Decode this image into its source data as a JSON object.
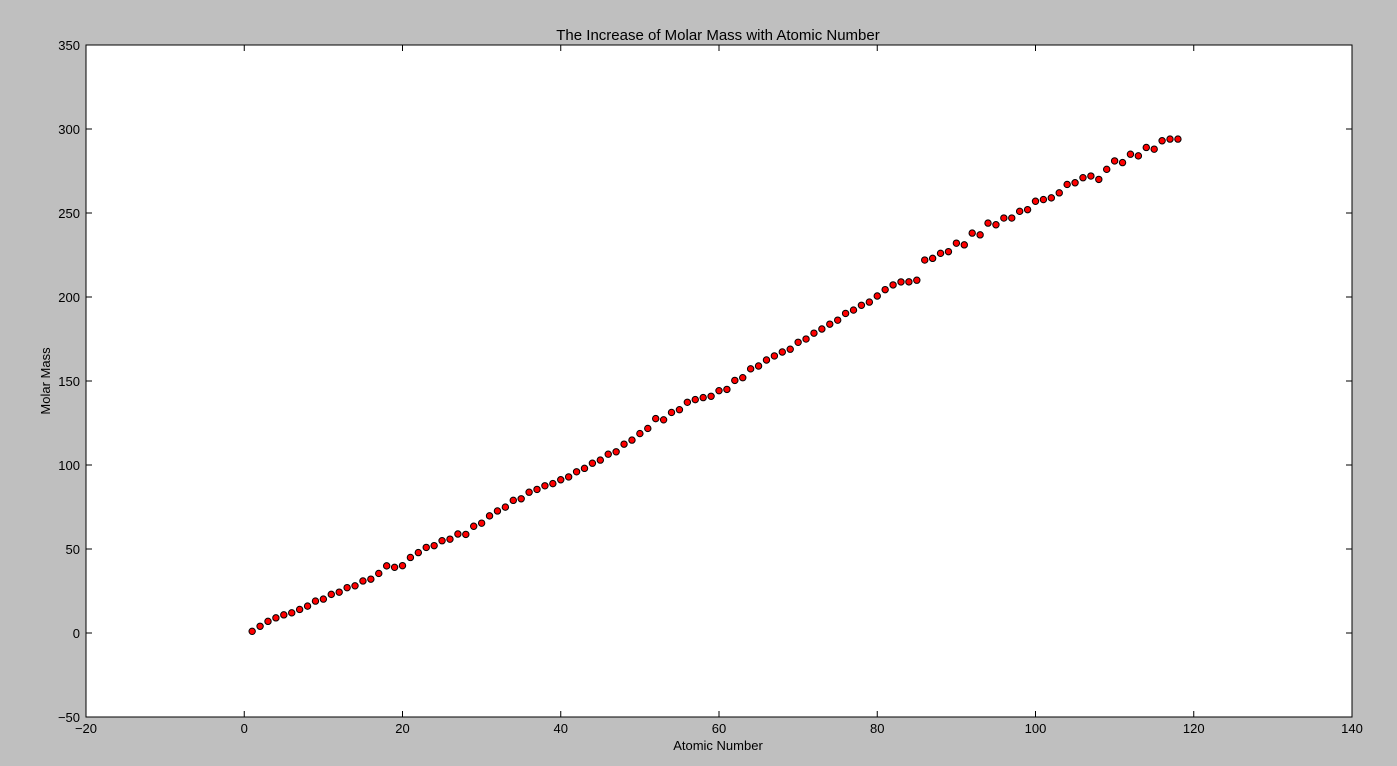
{
  "chart_data": {
    "type": "scatter",
    "title": "The Increase of Molar Mass with Atomic Number",
    "xlabel": "Atomic Number",
    "ylabel": "Molar Mass",
    "xlim": [
      -20,
      140
    ],
    "ylim": [
      -50,
      350
    ],
    "xticks": [
      -20,
      0,
      20,
      40,
      60,
      80,
      100,
      120,
      140
    ],
    "yticks": [
      -50,
      0,
      50,
      100,
      150,
      200,
      250,
      300,
      350
    ],
    "xtick_labels": [
      "−20",
      "0",
      "20",
      "40",
      "60",
      "80",
      "100",
      "120",
      "140"
    ],
    "ytick_labels": [
      "−50",
      "0",
      "50",
      "100",
      "150",
      "200",
      "250",
      "300",
      "350"
    ],
    "grid": false,
    "legend": "none",
    "marker_color": "#ff0000",
    "marker_edge_color": "#000000",
    "x": [
      1,
      2,
      3,
      4,
      5,
      6,
      7,
      8,
      9,
      10,
      11,
      12,
      13,
      14,
      15,
      16,
      17,
      18,
      19,
      20,
      21,
      22,
      23,
      24,
      25,
      26,
      27,
      28,
      29,
      30,
      31,
      32,
      33,
      34,
      35,
      36,
      37,
      38,
      39,
      40,
      41,
      42,
      43,
      44,
      45,
      46,
      47,
      48,
      49,
      50,
      51,
      52,
      53,
      54,
      55,
      56,
      57,
      58,
      59,
      60,
      61,
      62,
      63,
      64,
      65,
      66,
      67,
      68,
      69,
      70,
      71,
      72,
      73,
      74,
      75,
      76,
      77,
      78,
      79,
      80,
      81,
      82,
      83,
      84,
      85,
      86,
      87,
      88,
      89,
      90,
      91,
      92,
      93,
      94,
      95,
      96,
      97,
      98,
      99,
      100,
      101,
      102,
      103,
      104,
      105,
      106,
      107,
      108,
      109,
      110,
      111,
      112,
      113,
      114,
      115,
      116,
      117,
      118
    ],
    "y": [
      1.008,
      4.003,
      6.94,
      9.012,
      10.81,
      12.01,
      14.01,
      16.0,
      19.0,
      20.18,
      22.99,
      24.31,
      26.98,
      28.09,
      30.97,
      32.06,
      35.45,
      39.95,
      39.1,
      40.08,
      44.96,
      47.87,
      50.94,
      52.0,
      54.94,
      55.85,
      58.93,
      58.69,
      63.55,
      65.38,
      69.72,
      72.63,
      74.92,
      78.97,
      79.9,
      83.8,
      85.47,
      87.62,
      88.91,
      91.22,
      92.91,
      95.95,
      98.0,
      101.07,
      102.91,
      106.42,
      107.87,
      112.41,
      114.82,
      118.71,
      121.76,
      127.6,
      126.9,
      131.29,
      132.91,
      137.33,
      138.91,
      140.12,
      140.91,
      144.24,
      145.0,
      150.36,
      151.96,
      157.25,
      158.93,
      162.5,
      164.93,
      167.26,
      168.93,
      173.05,
      174.97,
      178.49,
      180.95,
      183.84,
      186.21,
      190.23,
      192.22,
      195.08,
      196.97,
      200.59,
      204.38,
      207.2,
      208.98,
      209.0,
      210.0,
      222.0,
      223.0,
      226.0,
      227.0,
      232.04,
      231.04,
      238.03,
      237.0,
      244.0,
      243.0,
      247.0,
      247.0,
      251.0,
      252.0,
      257.0,
      258.0,
      259.0,
      262.0,
      267.0,
      268.0,
      271.0,
      272.0,
      270.0,
      276.0,
      281.0,
      280.0,
      285.0,
      284.0,
      289.0,
      288.0,
      293.0,
      294.0,
      294.0
    ]
  }
}
